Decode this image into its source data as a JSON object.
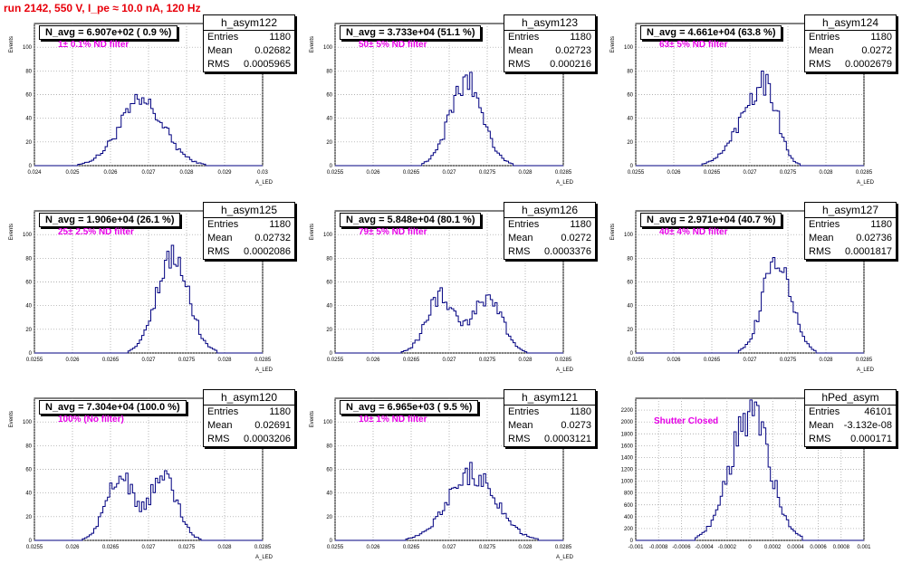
{
  "header": {
    "run_title": "run 2142,   550 V, I_pe ≈ 10.0 nA, 120 Hz"
  },
  "colors": {
    "title": "#e8000b",
    "filter_label": "#e600e6",
    "histogram": "#000080",
    "grid": "#999999"
  },
  "panels": [
    {
      "hist_name": "h_asym122",
      "entries": "1180",
      "mean": "0.02682",
      "rms": "0.0005965",
      "navg": "N_avg = 6.907e+02 ( 0.9 %)",
      "filter": "1± 0.1% ND filter",
      "ylabel": "Events",
      "xlabel": "A_LED",
      "chart_data": {
        "type": "histogram",
        "xlim": [
          0.024,
          0.03
        ],
        "ylim": [
          0,
          120
        ],
        "xticks": [
          "0.024",
          "0.025",
          "0.026",
          "0.027",
          "0.028",
          "0.029",
          "0.03"
        ],
        "yticks": [
          "0",
          "20",
          "40",
          "60",
          "80",
          "100"
        ],
        "mean": 0.02682,
        "rms": 0.0005965,
        "peak": 53,
        "shape": "single",
        "grid": true
      }
    },
    {
      "hist_name": "h_asym123",
      "entries": "1180",
      "mean": "0.02723",
      "rms": "0.000216",
      "navg": "N_avg = 3.733e+04 (51.1 %)",
      "filter": "50± 5% ND filter",
      "ylabel": "Events",
      "xlabel": "A_LED",
      "chart_data": {
        "type": "histogram",
        "xlim": [
          0.0255,
          0.0285
        ],
        "ylim": [
          0,
          120
        ],
        "xticks": [
          "0.0255",
          "0.026",
          "0.0265",
          "0.027",
          "0.0275",
          "0.028",
          "0.0285"
        ],
        "yticks": [
          "0",
          "20",
          "40",
          "60",
          "80",
          "100"
        ],
        "mean": 0.02723,
        "rms": 0.000216,
        "peak": 71,
        "shape": "single",
        "grid": true
      }
    },
    {
      "hist_name": "h_asym124",
      "entries": "1180",
      "mean": "0.0272",
      "rms": "0.0002679",
      "navg": "N_avg = 4.661e+04 (63.8 %)",
      "filter": "63± 5% ND filter",
      "ylabel": "Events",
      "xlabel": "A_LED",
      "chart_data": {
        "type": "histogram",
        "xlim": [
          0.0255,
          0.0285
        ],
        "ylim": [
          0,
          120
        ],
        "xticks": [
          "0.0255",
          "0.026",
          "0.0265",
          "0.027",
          "0.0275",
          "0.028",
          "0.0285"
        ],
        "yticks": [
          "0",
          "20",
          "40",
          "60",
          "80",
          "100"
        ],
        "mean": 0.0272,
        "rms": 0.0002679,
        "peak": 72,
        "shape": "skew",
        "grid": true
      }
    },
    {
      "hist_name": "h_asym125",
      "entries": "1180",
      "mean": "0.02732",
      "rms": "0.0002086",
      "navg": "N_avg = 1.906e+04 (26.1 %)",
      "filter": "25± 2.5% ND filter",
      "ylabel": "Events",
      "xlabel": "A_LED",
      "chart_data": {
        "type": "histogram",
        "xlim": [
          0.0255,
          0.0285
        ],
        "ylim": [
          0,
          120
        ],
        "xticks": [
          "0.0255",
          "0.026",
          "0.0265",
          "0.027",
          "0.0275",
          "0.028",
          "0.0285"
        ],
        "yticks": [
          "0",
          "20",
          "40",
          "60",
          "80",
          "100"
        ],
        "mean": 0.02732,
        "rms": 0.0002086,
        "peak": 80,
        "shape": "single",
        "grid": true
      }
    },
    {
      "hist_name": "h_asym126",
      "entries": "1180",
      "mean": "0.0272",
      "rms": "0.0003376",
      "navg": "N_avg = 5.848e+04 (80.1 %)",
      "filter": "79± 5% ND filter",
      "ylabel": "Events",
      "xlabel": "A_LED",
      "chart_data": {
        "type": "histogram",
        "xlim": [
          0.0255,
          0.0285
        ],
        "ylim": [
          0,
          120
        ],
        "xticks": [
          "0.0255",
          "0.026",
          "0.0265",
          "0.027",
          "0.0275",
          "0.028",
          "0.0285"
        ],
        "yticks": [
          "0",
          "20",
          "40",
          "60",
          "80",
          "100"
        ],
        "mean": 0.0272,
        "rms": 0.0003376,
        "peak": 51,
        "shape": "double",
        "grid": true
      }
    },
    {
      "hist_name": "h_asym127",
      "entries": "1180",
      "mean": "0.02736",
      "rms": "0.0001817",
      "navg": "N_avg = 2.971e+04 (40.7 %)",
      "filter": "40± 4% ND filter",
      "ylabel": "Events",
      "xlabel": "A_LED",
      "chart_data": {
        "type": "histogram",
        "xlim": [
          0.0255,
          0.0285
        ],
        "ylim": [
          0,
          120
        ],
        "xticks": [
          "0.0255",
          "0.026",
          "0.0265",
          "0.027",
          "0.0275",
          "0.028",
          "0.0285"
        ],
        "yticks": [
          "0",
          "20",
          "40",
          "60",
          "80",
          "100"
        ],
        "mean": 0.02736,
        "rms": 0.0001817,
        "peak": 81,
        "shape": "single",
        "grid": true
      }
    },
    {
      "hist_name": "h_asym120",
      "entries": "1180",
      "mean": "0.02691",
      "rms": "0.0003206",
      "navg": "N_avg = 7.304e+04 (100.0 %)",
      "filter": "100% (No filter)",
      "ylabel": "Events",
      "xlabel": "A_LED",
      "chart_data": {
        "type": "histogram",
        "xlim": [
          0.0255,
          0.0285
        ],
        "ylim": [
          0,
          120
        ],
        "xticks": [
          "0.0255",
          "0.026",
          "0.0265",
          "0.027",
          "0.0275",
          "0.028",
          "0.0285"
        ],
        "yticks": [
          "0",
          "20",
          "40",
          "60",
          "80",
          "100"
        ],
        "mean": 0.02691,
        "rms": 0.0003206,
        "peak": 57,
        "shape": "double",
        "grid": true
      }
    },
    {
      "hist_name": "h_asym121",
      "entries": "1180",
      "mean": "0.0273",
      "rms": "0.0003121",
      "navg": "N_avg = 6.965e+03 ( 9.5 %)",
      "filter": "10± 1% ND filter",
      "ylabel": "Events",
      "xlabel": "A_LED",
      "chart_data": {
        "type": "histogram",
        "xlim": [
          0.0255,
          0.0285
        ],
        "ylim": [
          0,
          120
        ],
        "xticks": [
          "0.0255",
          "0.026",
          "0.0265",
          "0.027",
          "0.0275",
          "0.028",
          "0.0285"
        ],
        "yticks": [
          "0",
          "20",
          "40",
          "60",
          "80",
          "100"
        ],
        "mean": 0.0273,
        "rms": 0.0003121,
        "peak": 57,
        "shape": "single",
        "grid": true
      }
    },
    {
      "hist_name": "hPed_asym",
      "entries": "46101",
      "mean": "-3.132e-08",
      "rms": "0.000171",
      "navg": "",
      "filter": "Shutter Closed",
      "ylabel": "",
      "xlabel": "",
      "chart_data": {
        "type": "histogram",
        "xlim": [
          -0.001,
          0.001
        ],
        "ylim": [
          0,
          2400
        ],
        "xticks": [
          "-0.001",
          "-0.0008",
          "-0.0006",
          "-0.0004",
          "-0.0002",
          "0",
          "0.0002",
          "0.0004",
          "0.0006",
          "0.0008",
          "0.001"
        ],
        "yticks": [
          "0",
          "200",
          "400",
          "600",
          "800",
          "1000",
          "1200",
          "1400",
          "1600",
          "1800",
          "2000",
          "2200"
        ],
        "mean": 0.0,
        "rms": 0.000171,
        "peak": 2160,
        "shape": "single",
        "grid": true
      }
    }
  ]
}
